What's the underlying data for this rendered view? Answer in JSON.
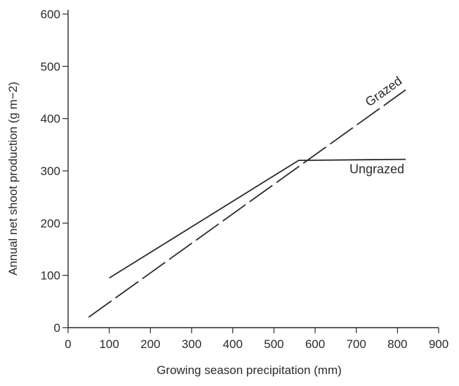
{
  "chart_data": {
    "type": "line",
    "title": "",
    "xlabel": "Growing season precipitation (mm)",
    "ylabel": "Annual net shoot production (g m−2)",
    "xlim": [
      0,
      900
    ],
    "ylim": [
      0,
      600
    ],
    "xticks": [
      0,
      100,
      200,
      300,
      400,
      500,
      600,
      700,
      800,
      900
    ],
    "yticks": [
      0,
      100,
      200,
      300,
      400,
      500,
      600
    ],
    "grid": false,
    "legend": "none",
    "line_color": "#2a2a2a",
    "series": [
      {
        "name": "Grazed",
        "style": "dashed",
        "points": [
          [
            50,
            20
          ],
          [
            820,
            455
          ]
        ]
      },
      {
        "name": "Ungrazed",
        "style": "solid",
        "points": [
          [
            100,
            95
          ],
          [
            560,
            320
          ],
          [
            820,
            322
          ]
        ]
      }
    ]
  }
}
